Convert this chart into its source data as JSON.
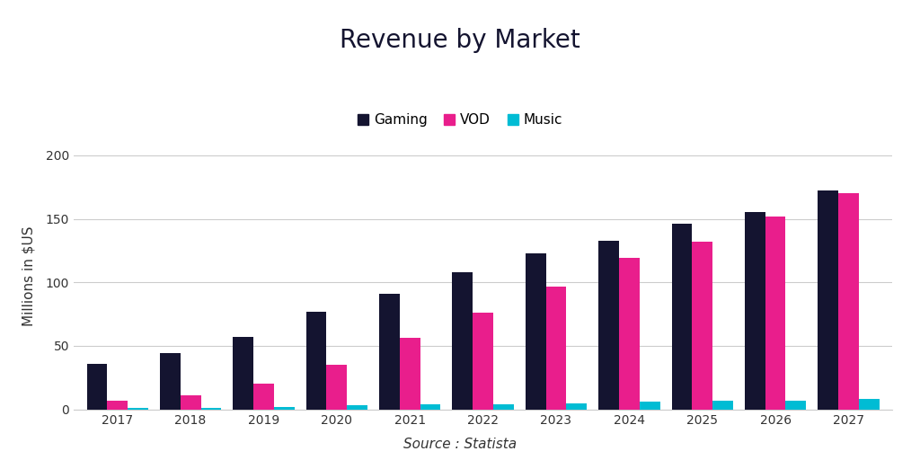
{
  "title": "Revenue by Market",
  "xlabel": "Source : Statista",
  "ylabel": "Millions in $US",
  "years": [
    2017,
    2018,
    2019,
    2020,
    2021,
    2022,
    2023,
    2024,
    2025,
    2026,
    2027
  ],
  "gaming": [
    36,
    44,
    57,
    77,
    91,
    108,
    123,
    133,
    146,
    155,
    172
  ],
  "vod": [
    7,
    11,
    20,
    35,
    56,
    76,
    97,
    119,
    132,
    152,
    170
  ],
  "music": [
    1,
    1,
    2,
    3,
    4,
    4,
    5,
    6,
    7,
    7,
    8
  ],
  "color_gaming": "#141430",
  "color_vod": "#E91E8C",
  "color_music": "#00BCD4",
  "background": "#FFFFFF",
  "ylim": [
    0,
    210
  ],
  "yticks": [
    0,
    50,
    100,
    150,
    200
  ],
  "legend_labels": [
    "Gaming",
    "VOD",
    "Music"
  ],
  "title_fontsize": 20,
  "label_fontsize": 11,
  "tick_fontsize": 10,
  "bar_width": 0.28
}
